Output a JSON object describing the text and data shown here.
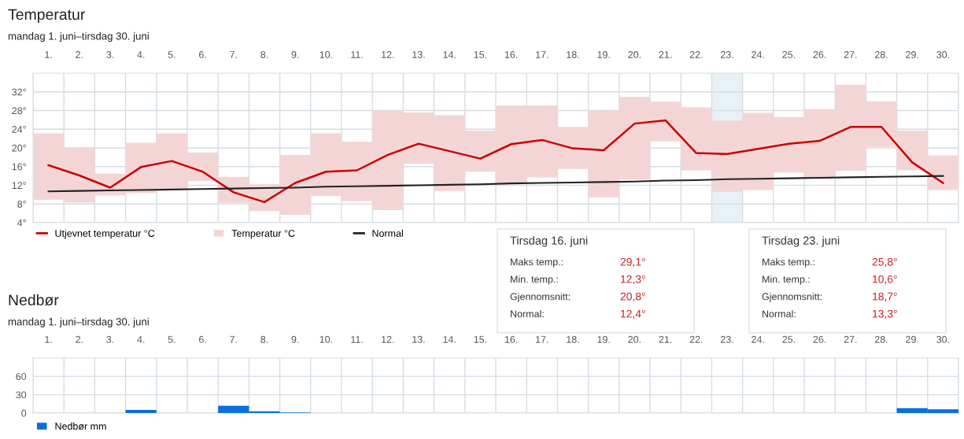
{
  "chart_data": [
    {
      "type": "bar",
      "title": "Temperatur",
      "subtitle": "mandag 1. juni–tirsdag 30. juni",
      "categories": [
        "1.",
        "2.",
        "3.",
        "4.",
        "5.",
        "6.",
        "7.",
        "8.",
        "9.",
        "10.",
        "11.",
        "12.",
        "13.",
        "14.",
        "15.",
        "16.",
        "17.",
        "18.",
        "19.",
        "20.",
        "21.",
        "22.",
        "23.",
        "24.",
        "25.",
        "26.",
        "27.",
        "28.",
        "29.",
        "30."
      ],
      "series": [
        {
          "name": "Utjevnet temperatur °C",
          "type": "line",
          "color": "#cc0000",
          "values": [
            16.3,
            14.1,
            11.5,
            15.9,
            17.2,
            14.9,
            10.5,
            8.4,
            12.5,
            14.9,
            15.2,
            18.5,
            20.9,
            19.3,
            17.7,
            20.8,
            21.7,
            19.9,
            19.5,
            25.2,
            25.9,
            18.9,
            18.7,
            19.8,
            20.9,
            21.5,
            24.5,
            24.5,
            16.9,
            12.5
          ]
        },
        {
          "name": "Temperatur °C",
          "type": "bar",
          "color": "#f4d5d6",
          "base": [
            8.9,
            8.3,
            9.8,
            10.3,
            11.3,
            12.9,
            8.2,
            6.5,
            5.7,
            9.7,
            8.6,
            6.7,
            16.6,
            10.8,
            14.9,
            12.3,
            13.7,
            15.5,
            9.4,
            13.2,
            21.4,
            15.2,
            10.6,
            11.0,
            14.7,
            13.5,
            15.1,
            20.2,
            15.2,
            11.0
          ],
          "values": [
            14.2,
            11.7,
            4.7,
            10.8,
            11.8,
            6.1,
            5.6,
            5.7,
            12.8,
            13.4,
            12.7,
            21.2,
            11.0,
            16.2,
            8.8,
            16.8,
            15.4,
            9.0,
            18.6,
            17.7,
            8.5,
            13.5,
            15.2,
            16.5,
            11.9,
            14.8,
            18.4,
            9.8,
            8.5,
            7.4
          ]
        },
        {
          "name": "Normal",
          "type": "line",
          "color": "#222222",
          "values": [
            10.7,
            10.8,
            10.9,
            11.0,
            11.1,
            11.2,
            11.3,
            11.4,
            11.5,
            11.7,
            11.8,
            11.9,
            12.0,
            12.1,
            12.2,
            12.4,
            12.5,
            12.6,
            12.7,
            12.8,
            13.0,
            13.1,
            13.3,
            13.4,
            13.5,
            13.6,
            13.7,
            13.8,
            13.9,
            14.0
          ]
        }
      ],
      "ylim": [
        4,
        36
      ],
      "yticks": [
        {
          "value": 4,
          "label": "4°"
        },
        {
          "value": 8,
          "label": "8°"
        },
        {
          "value": 12,
          "label": "12°"
        },
        {
          "value": 16,
          "label": "16°"
        },
        {
          "value": 20,
          "label": "20°"
        },
        {
          "value": 24,
          "label": "24°"
        },
        {
          "value": 28,
          "label": "28°"
        },
        {
          "value": 32,
          "label": "32°"
        }
      ],
      "bands": [
        {
          "axis": "x",
          "from": "23.",
          "to": "23.",
          "color": "#e8f2f4"
        }
      ],
      "grid": true,
      "legend": "bottom",
      "line_style": "solid",
      "marker": "none",
      "annotations": [
        "Tirsdag 16. juni\nMaks temp.:\t29,1°\nMin. temp.:\t12,3°\nGjennomsnitt:\t20,8°\nNormal:\t12,4°",
        "Tirsdag 23. juni\nMaks temp.:\t25,8°\nMin. temp.:\t10,6°\nGjennomsnitt:\t18,7°\nNormal:\t13,3°"
      ]
    },
    {
      "type": "bar",
      "title": "Nedbør",
      "subtitle": "mandag 1. juni–tirsdag 30. juni",
      "categories": [
        "1.",
        "2.",
        "3.",
        "4.",
        "5.",
        "6.",
        "7.",
        "8.",
        "9.",
        "10.",
        "11.",
        "12.",
        "13.",
        "14.",
        "15.",
        "16.",
        "17.",
        "18.",
        "19.",
        "20.",
        "21.",
        "22.",
        "23.",
        "24.",
        "25.",
        "26.",
        "27.",
        "28.",
        "29.",
        "30."
      ],
      "series": [
        {
          "name": "Nedbør mm",
          "color": "#0b6fde",
          "values": [
            0,
            0,
            0,
            5,
            0,
            0,
            12,
            3,
            1,
            0,
            0,
            0,
            0,
            0,
            0,
            0,
            0,
            0,
            0,
            0,
            0,
            0,
            0,
            0,
            0,
            0,
            0,
            0,
            8,
            6
          ]
        }
      ],
      "ylim": [
        0,
        90
      ],
      "yticks": [
        0,
        30,
        60
      ],
      "grid": true,
      "legend": "bottom"
    }
  ]
}
